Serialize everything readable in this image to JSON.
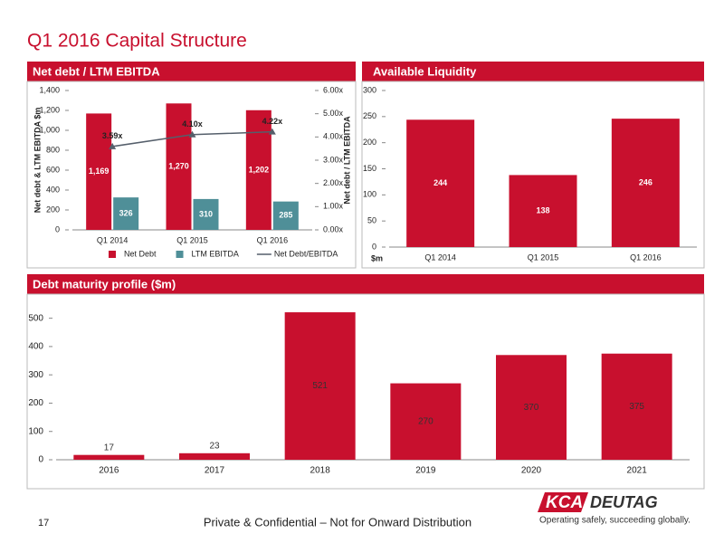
{
  "page": {
    "title": "Q1 2016 Capital Structure",
    "page_number": "17",
    "footer": "Private & Confidential – Not for Onward Distribution",
    "brand": "KCA",
    "brand_suffix": "DEUTAG",
    "tagline": "Operating safely, succeeding globally."
  },
  "chart_data": [
    {
      "type": "combo",
      "title": "Net debt / LTM EBITDA",
      "categories": [
        "Q1 2014",
        "Q1 2015",
        "Q1 2016"
      ],
      "y_label": "Net debt & LTM EBITDA $m",
      "y2_label": "Net debt / LTM EBITDA",
      "series": [
        {
          "name": "Net Debt",
          "type": "bar",
          "color": "#c8102e",
          "values": [
            1169,
            1270,
            1202
          ],
          "value_labels": [
            "1,169",
            "1,270",
            "1,202"
          ]
        },
        {
          "name": "LTM EBITDA",
          "type": "bar",
          "color": "#4f8f98",
          "values": [
            326,
            310,
            285
          ]
        },
        {
          "name": "Net Debt/EBITDA",
          "type": "line",
          "axis": "y2",
          "color": "#555f6b",
          "values": [
            3.59,
            4.1,
            4.22
          ],
          "value_labels": [
            "3.59x",
            "4.10x",
            "4.22x"
          ]
        }
      ],
      "ylim": [
        0,
        1400
      ],
      "yticks": [
        0,
        200,
        400,
        600,
        800,
        {
          "value": 1000,
          "label": "1,000"
        },
        {
          "value": 1200,
          "label": "1,200"
        },
        {
          "value": 1400,
          "label": "1,400"
        }
      ],
      "y2lim": [
        0,
        6
      ],
      "y2ticks": [
        {
          "value": 0,
          "label": "0.00x"
        },
        {
          "value": 1,
          "label": "1.00x"
        },
        {
          "value": 2,
          "label": "2.00x"
        },
        {
          "value": 3,
          "label": "3.00x"
        },
        {
          "value": 4,
          "label": "4.00x"
        },
        {
          "value": 5,
          "label": "5.00x"
        },
        {
          "value": 6,
          "label": "6.00x"
        }
      ],
      "legend": "bottom"
    },
    {
      "type": "bar",
      "title": "Available Liquidity",
      "categories": [
        "Q1 2014",
        "Q1 2015",
        "Q1 2016"
      ],
      "values": [
        244,
        138,
        246
      ],
      "color": "#c8102e",
      "y_label": "$m",
      "ylim": [
        0,
        300
      ],
      "yticks": [
        0,
        50,
        100,
        150,
        200,
        250,
        300
      ]
    },
    {
      "type": "bar",
      "title": "Debt maturity profile ($m)",
      "categories": [
        "2016",
        "2017",
        "2018",
        "2019",
        "2020",
        "2021"
      ],
      "values": [
        17,
        23,
        521,
        270,
        370,
        375
      ],
      "color": "#c8102e",
      "ylim": [
        0,
        550
      ],
      "yticks": [
        0,
        100,
        200,
        300,
        400,
        500
      ]
    }
  ]
}
